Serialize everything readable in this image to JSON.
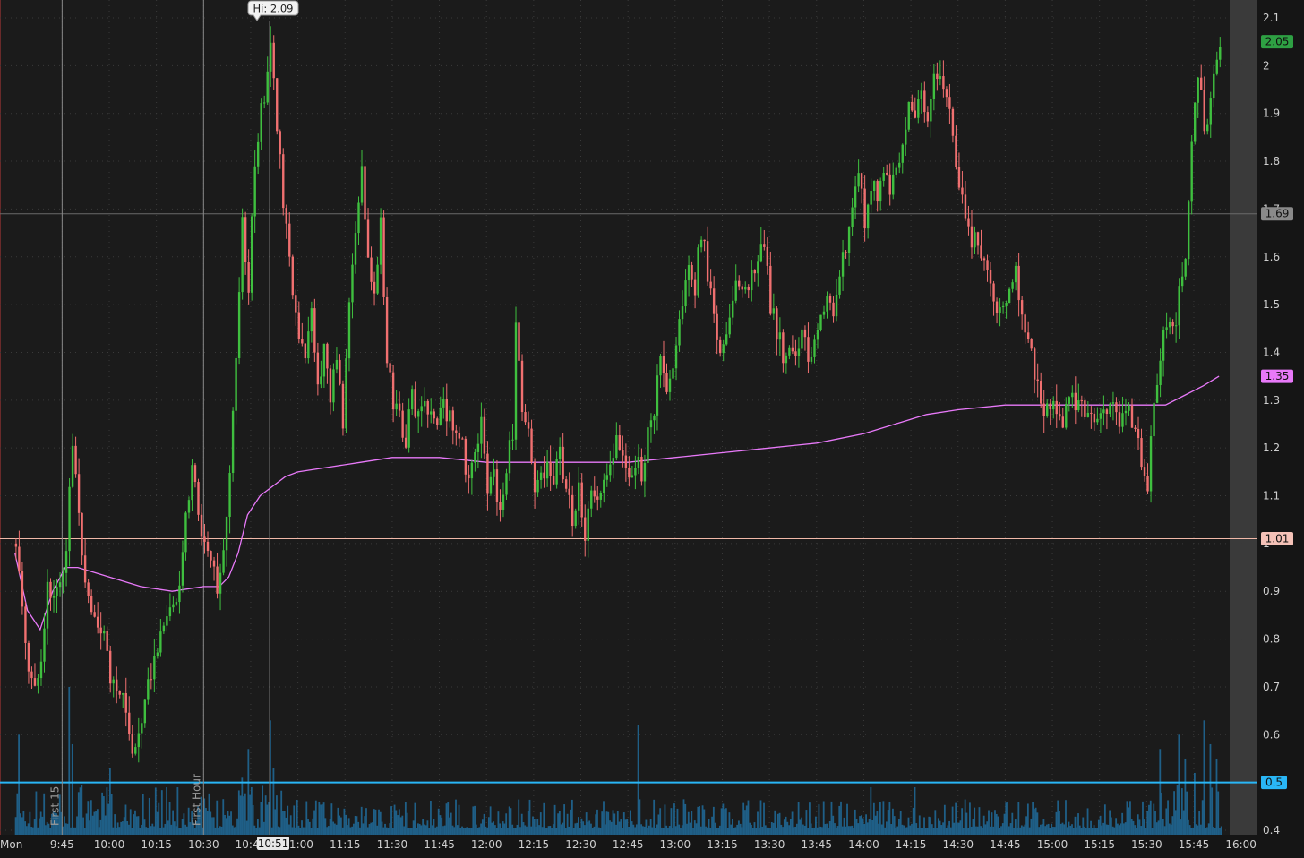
{
  "chart_data": {
    "type": "candlestick",
    "session_label": "Mon",
    "x_tick_labels": [
      "9:45",
      "10:00",
      "10:15",
      "10:30",
      "10:45",
      "11:00",
      "11:15",
      "11:30",
      "11:45",
      "12:00",
      "12:15",
      "12:30",
      "12:45",
      "13:00",
      "13:15",
      "13:30",
      "13:45",
      "14:00",
      "14:15",
      "14:30",
      "14:45",
      "15:00",
      "15:15",
      "15:30",
      "15:45",
      "16:00"
    ],
    "x_range": [
      "9:30",
      "16:00"
    ],
    "y_tick_labels": [
      "2.1",
      "2",
      "1.9",
      "1.8",
      "1.7",
      "1.6",
      "1.5",
      "1.4",
      "1.3",
      "1.2",
      "1.1",
      "1",
      "0.9",
      "0.8",
      "0.7",
      "0.6",
      "0.5",
      "0.4"
    ],
    "ylim": [
      0.4,
      2.1
    ],
    "grid": true,
    "price_markers": [
      {
        "label": "2.05",
        "value": 2.05,
        "color": "#2ea043"
      },
      {
        "label": "1.69",
        "value": 1.69,
        "color": "#8a8a8a"
      },
      {
        "label": "1.35",
        "value": 1.35,
        "color": "#e879f9"
      },
      {
        "label": "1.01",
        "value": 1.01,
        "color": "#f5c2b8"
      },
      {
        "label": "0.5",
        "value": 0.5,
        "color": "#29b6f6"
      }
    ],
    "horizontal_lines": [
      {
        "value": 1.69,
        "color": "#6a6a6a"
      },
      {
        "value": 1.01,
        "color": "#f0b8a8"
      },
      {
        "value": 0.5,
        "color": "#29b6f6"
      }
    ],
    "vertical_markers": [
      {
        "time": "9:45",
        "label": "First 15"
      },
      {
        "time": "10:30",
        "label": "First Hour"
      }
    ],
    "crosshair_time": "10:51",
    "hi_annotation": {
      "label": "Hi: 2.09",
      "time": "10:51",
      "value": 2.09
    },
    "price_path": [
      [
        "9:30",
        1.0
      ],
      [
        "9:32",
        0.86
      ],
      [
        "9:34",
        0.72
      ],
      [
        "9:36",
        0.68
      ],
      [
        "9:38",
        0.74
      ],
      [
        "9:40",
        0.92
      ],
      [
        "9:42",
        0.88
      ],
      [
        "9:44",
        0.92
      ],
      [
        "9:46",
        1.0
      ],
      [
        "9:48",
        1.22
      ],
      [
        "9:50",
        1.06
      ],
      [
        "9:52",
        0.92
      ],
      [
        "9:54",
        0.85
      ],
      [
        "9:56",
        0.82
      ],
      [
        "9:58",
        0.8
      ],
      [
        "10:00",
        0.72
      ],
      [
        "10:03",
        0.68
      ],
      [
        "10:05",
        0.66
      ],
      [
        "10:07",
        0.56
      ],
      [
        "10:10",
        0.64
      ],
      [
        "10:13",
        0.74
      ],
      [
        "10:16",
        0.82
      ],
      [
        "10:19",
        0.86
      ],
      [
        "10:22",
        0.92
      ],
      [
        "10:24",
        1.04
      ],
      [
        "10:26",
        1.18
      ],
      [
        "10:28",
        1.04
      ],
      [
        "10:30",
        0.98
      ],
      [
        "10:32",
        0.94
      ],
      [
        "10:34",
        0.92
      ],
      [
        "10:36",
        1.0
      ],
      [
        "10:38",
        1.14
      ],
      [
        "10:40",
        1.4
      ],
      [
        "10:42",
        1.66
      ],
      [
        "10:44",
        1.52
      ],
      [
        "10:46",
        1.8
      ],
      [
        "10:48",
        1.9
      ],
      [
        "10:51",
        2.04
      ],
      [
        "10:53",
        1.88
      ],
      [
        "10:55",
        1.72
      ],
      [
        "10:57",
        1.6
      ],
      [
        "11:00",
        1.42
      ],
      [
        "11:02",
        1.38
      ],
      [
        "11:04",
        1.5
      ],
      [
        "11:06",
        1.32
      ],
      [
        "11:08",
        1.42
      ],
      [
        "11:10",
        1.3
      ],
      [
        "11:12",
        1.4
      ],
      [
        "11:14",
        1.26
      ],
      [
        "11:16",
        1.5
      ],
      [
        "11:18",
        1.66
      ],
      [
        "11:20",
        1.78
      ],
      [
        "11:22",
        1.6
      ],
      [
        "11:24",
        1.5
      ],
      [
        "11:26",
        1.66
      ],
      [
        "11:28",
        1.4
      ],
      [
        "11:30",
        1.3
      ],
      [
        "11:32",
        1.26
      ],
      [
        "11:34",
        1.22
      ],
      [
        "11:36",
        1.3
      ],
      [
        "11:38",
        1.26
      ],
      [
        "11:40",
        1.3
      ],
      [
        "11:42",
        1.28
      ],
      [
        "11:44",
        1.26
      ],
      [
        "11:46",
        1.3
      ],
      [
        "11:48",
        1.26
      ],
      [
        "11:50",
        1.24
      ],
      [
        "11:52",
        1.2
      ],
      [
        "11:54",
        1.12
      ],
      [
        "11:56",
        1.18
      ],
      [
        "11:58",
        1.24
      ],
      [
        "12:00",
        1.1
      ],
      [
        "12:02",
        1.14
      ],
      [
        "12:04",
        1.08
      ],
      [
        "12:06",
        1.16
      ],
      [
        "12:08",
        1.24
      ],
      [
        "12:09",
        1.44
      ],
      [
        "12:11",
        1.3
      ],
      [
        "12:13",
        1.22
      ],
      [
        "12:15",
        1.1
      ],
      [
        "12:17",
        1.14
      ],
      [
        "12:19",
        1.18
      ],
      [
        "12:21",
        1.12
      ],
      [
        "12:23",
        1.2
      ],
      [
        "12:25",
        1.1
      ],
      [
        "12:27",
        1.06
      ],
      [
        "12:29",
        1.12
      ],
      [
        "12:31",
        1.02
      ],
      [
        "12:33",
        1.1
      ],
      [
        "12:35",
        1.08
      ],
      [
        "12:37",
        1.12
      ],
      [
        "12:39",
        1.16
      ],
      [
        "12:41",
        1.22
      ],
      [
        "12:43",
        1.18
      ],
      [
        "12:45",
        1.12
      ],
      [
        "12:47",
        1.18
      ],
      [
        "12:49",
        1.14
      ],
      [
        "12:51",
        1.22
      ],
      [
        "12:53",
        1.28
      ],
      [
        "12:55",
        1.38
      ],
      [
        "12:57",
        1.3
      ],
      [
        "12:59",
        1.38
      ],
      [
        "13:00",
        1.42
      ],
      [
        "13:02",
        1.52
      ],
      [
        "13:04",
        1.6
      ],
      [
        "13:06",
        1.54
      ],
      [
        "13:08",
        1.66
      ],
      [
        "13:10",
        1.56
      ],
      [
        "13:12",
        1.46
      ],
      [
        "13:14",
        1.42
      ],
      [
        "13:16",
        1.46
      ],
      [
        "13:18",
        1.5
      ],
      [
        "13:20",
        1.56
      ],
      [
        "13:22",
        1.52
      ],
      [
        "13:24",
        1.58
      ],
      [
        "13:26",
        1.6
      ],
      [
        "13:28",
        1.62
      ],
      [
        "13:30",
        1.5
      ],
      [
        "13:32",
        1.44
      ],
      [
        "13:34",
        1.4
      ],
      [
        "13:36",
        1.42
      ],
      [
        "13:38",
        1.4
      ],
      [
        "13:40",
        1.44
      ],
      [
        "13:42",
        1.4
      ],
      [
        "13:44",
        1.42
      ],
      [
        "13:46",
        1.48
      ],
      [
        "13:48",
        1.52
      ],
      [
        "13:50",
        1.5
      ],
      [
        "13:52",
        1.56
      ],
      [
        "13:54",
        1.62
      ],
      [
        "13:56",
        1.7
      ],
      [
        "13:58",
        1.78
      ],
      [
        "14:00",
        1.66
      ],
      [
        "14:02",
        1.76
      ],
      [
        "14:04",
        1.72
      ],
      [
        "14:06",
        1.8
      ],
      [
        "14:08",
        1.72
      ],
      [
        "14:10",
        1.78
      ],
      [
        "14:12",
        1.84
      ],
      [
        "14:14",
        1.92
      ],
      [
        "14:16",
        1.88
      ],
      [
        "14:18",
        1.94
      ],
      [
        "14:20",
        1.9
      ],
      [
        "14:22",
        1.96
      ],
      [
        "14:24",
        1.98
      ],
      [
        "14:26",
        1.92
      ],
      [
        "14:28",
        1.86
      ],
      [
        "14:30",
        1.76
      ],
      [
        "14:32",
        1.68
      ],
      [
        "14:34",
        1.62
      ],
      [
        "14:36",
        1.64
      ],
      [
        "14:38",
        1.58
      ],
      [
        "14:40",
        1.52
      ],
      [
        "14:42",
        1.46
      ],
      [
        "14:44",
        1.48
      ],
      [
        "14:46",
        1.52
      ],
      [
        "14:48",
        1.56
      ],
      [
        "14:50",
        1.5
      ],
      [
        "14:52",
        1.42
      ],
      [
        "14:54",
        1.36
      ],
      [
        "14:56",
        1.3
      ],
      [
        "14:58",
        1.28
      ],
      [
        "15:00",
        1.3
      ],
      [
        "15:03",
        1.26
      ],
      [
        "15:06",
        1.3
      ],
      [
        "15:09",
        1.28
      ],
      [
        "15:12",
        1.26
      ],
      [
        "15:15",
        1.28
      ],
      [
        "15:18",
        1.3
      ],
      [
        "15:21",
        1.26
      ],
      [
        "15:24",
        1.28
      ],
      [
        "15:26",
        1.24
      ],
      [
        "15:28",
        1.16
      ],
      [
        "15:30",
        1.12
      ],
      [
        "15:32",
        1.3
      ],
      [
        "15:34",
        1.4
      ],
      [
        "15:36",
        1.46
      ],
      [
        "15:38",
        1.44
      ],
      [
        "15:40",
        1.52
      ],
      [
        "15:42",
        1.58
      ],
      [
        "15:44",
        1.84
      ],
      [
        "15:46",
        1.98
      ],
      [
        "15:48",
        1.88
      ],
      [
        "15:50",
        1.92
      ],
      [
        "15:52",
        2.02
      ],
      [
        "15:53",
        2.05
      ]
    ],
    "vwap_path": [
      [
        "9:30",
        0.98
      ],
      [
        "9:34",
        0.86
      ],
      [
        "9:38",
        0.82
      ],
      [
        "9:42",
        0.9
      ],
      [
        "9:46",
        0.95
      ],
      [
        "9:50",
        0.95
      ],
      [
        "9:55",
        0.94
      ],
      [
        "10:00",
        0.93
      ],
      [
        "10:10",
        0.91
      ],
      [
        "10:20",
        0.9
      ],
      [
        "10:30",
        0.91
      ],
      [
        "10:35",
        0.91
      ],
      [
        "10:38",
        0.93
      ],
      [
        "10:41",
        0.98
      ],
      [
        "10:44",
        1.06
      ],
      [
        "10:48",
        1.1
      ],
      [
        "10:52",
        1.12
      ],
      [
        "10:56",
        1.14
      ],
      [
        "11:00",
        1.15
      ],
      [
        "11:10",
        1.16
      ],
      [
        "11:20",
        1.17
      ],
      [
        "11:30",
        1.18
      ],
      [
        "11:45",
        1.18
      ],
      [
        "12:00",
        1.17
      ],
      [
        "12:15",
        1.17
      ],
      [
        "12:30",
        1.17
      ],
      [
        "12:45",
        1.17
      ],
      [
        "13:00",
        1.18
      ],
      [
        "13:15",
        1.19
      ],
      [
        "13:30",
        1.2
      ],
      [
        "13:45",
        1.21
      ],
      [
        "14:00",
        1.23
      ],
      [
        "14:10",
        1.25
      ],
      [
        "14:20",
        1.27
      ],
      [
        "14:30",
        1.28
      ],
      [
        "14:45",
        1.29
      ],
      [
        "15:00",
        1.29
      ],
      [
        "15:15",
        1.29
      ],
      [
        "15:30",
        1.29
      ],
      [
        "15:36",
        1.29
      ],
      [
        "15:42",
        1.31
      ],
      [
        "15:48",
        1.33
      ],
      [
        "15:53",
        1.35
      ]
    ],
    "volume_spikes": [
      [
        "9:31",
        0.6
      ],
      [
        "9:47",
        0.7
      ],
      [
        "9:48",
        0.58
      ],
      [
        "9:50",
        0.48
      ],
      [
        "10:00",
        0.53
      ],
      [
        "10:29",
        0.47
      ],
      [
        "10:42",
        0.51
      ],
      [
        "10:44",
        0.57
      ],
      [
        "10:45",
        0.49
      ],
      [
        "10:48",
        0.46
      ],
      [
        "10:51",
        0.63
      ],
      [
        "10:52",
        0.53
      ],
      [
        "12:48",
        0.62
      ],
      [
        "14:02",
        0.49
      ],
      [
        "14:08",
        0.46
      ],
      [
        "14:16",
        0.49
      ],
      [
        "15:34",
        0.57
      ],
      [
        "15:40",
        0.6
      ],
      [
        "15:42",
        0.55
      ],
      [
        "15:45",
        0.52
      ],
      [
        "15:48",
        0.63
      ],
      [
        "15:50",
        0.58
      ],
      [
        "15:52",
        0.55
      ]
    ]
  }
}
